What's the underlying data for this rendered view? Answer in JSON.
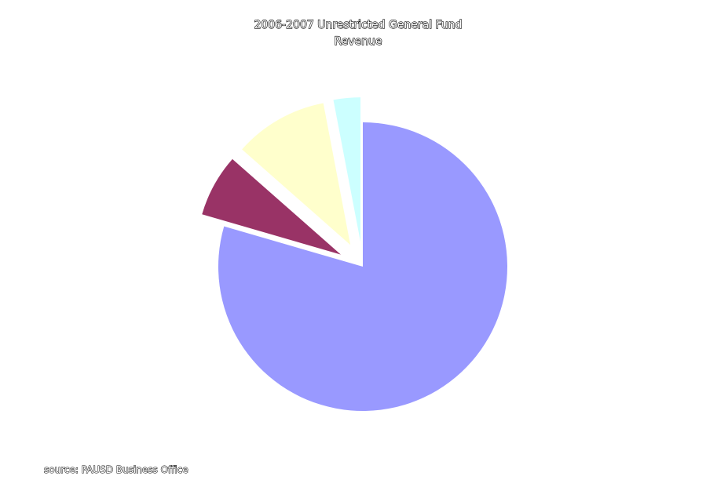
{
  "chart_data": {
    "type": "pie",
    "title": "2006-2007 Unrestricted General Fund",
    "subtitle": "Revenue",
    "source": "source: PAUSD Business Office",
    "slices": [
      {
        "value": 79.5,
        "color": "#9999ff",
        "exploded": false
      },
      {
        "value": 7.0,
        "color": "#993366",
        "exploded": true
      },
      {
        "value": 10.5,
        "color": "#ffffcc",
        "exploded": true
      },
      {
        "value": 3.0,
        "color": "#ccffff",
        "exploded": true
      }
    ]
  }
}
